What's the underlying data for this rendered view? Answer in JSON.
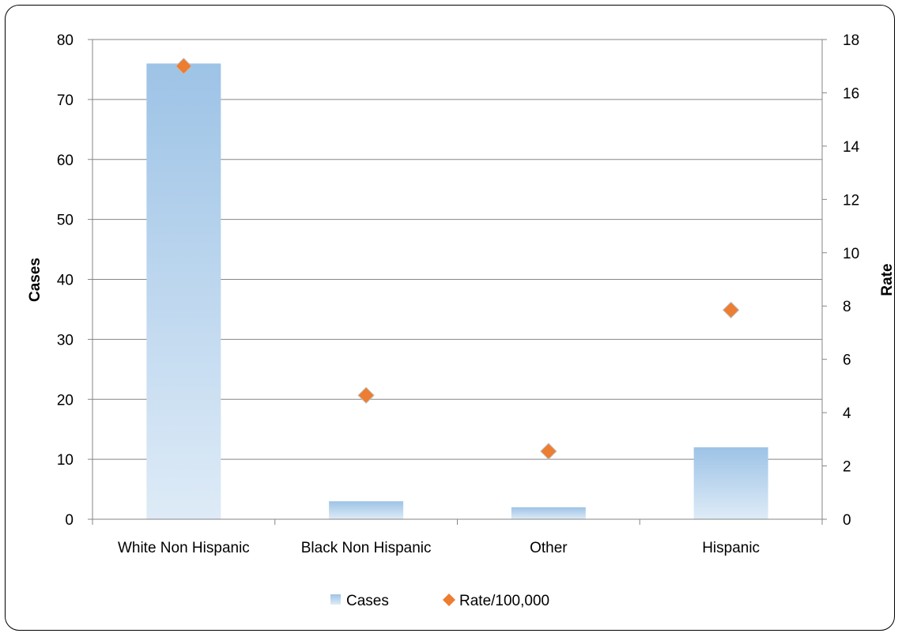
{
  "chart_data": {
    "type": "bar",
    "categories": [
      "White Non Hispanic",
      "Black Non Hispanic",
      "Other",
      "Hispanic"
    ],
    "series": [
      {
        "name": "Cases",
        "type": "bar",
        "axis": "left",
        "values": [
          76,
          3,
          2,
          12
        ]
      },
      {
        "name": "Rate/100,000",
        "type": "scatter",
        "axis": "right",
        "values": [
          17.0,
          4.65,
          2.55,
          7.85
        ]
      }
    ],
    "ylabel": "Cases",
    "y2label": "Rate",
    "ylim": [
      0,
      80
    ],
    "y2lim": [
      0,
      18
    ],
    "yticks": [
      "0",
      "10",
      "20",
      "30",
      "40",
      "50",
      "60",
      "70",
      "80"
    ],
    "y2ticks": [
      "0",
      "2",
      "4",
      "6",
      "8",
      "10",
      "12",
      "14",
      "16",
      "18"
    ],
    "grid": true,
    "legend_position": "bottom",
    "colors": {
      "bar_top": "#9dc3e6",
      "bar_bottom": "#deebf7",
      "marker": "#ed7d31",
      "grid": "#868686"
    }
  }
}
